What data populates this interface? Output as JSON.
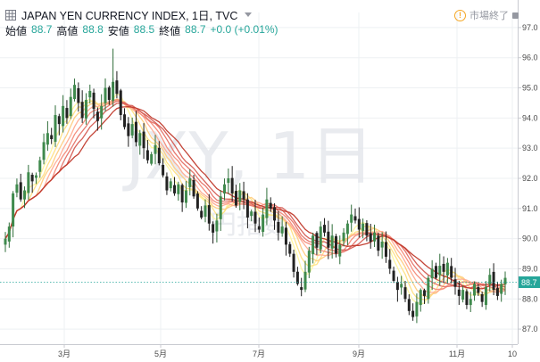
{
  "header": {
    "title": "JAPAN YEN CURRENCY INDEX, 1日, TVC",
    "ohlc": [
      {
        "label": "始値",
        "value": "88.7"
      },
      {
        "label": "高値",
        "value": "88.8"
      },
      {
        "label": "安値",
        "value": "88.5"
      },
      {
        "label": "終値",
        "value": "88.7"
      }
    ],
    "change": "+0.0 (+0.01%)"
  },
  "status": {
    "text": "市場終了"
  },
  "watermark": {
    "symbol": "JXY, 1日",
    "sub": "円指数"
  },
  "price_label": "88.7",
  "colors": {
    "up": "#26a69a",
    "down": "#ef5350",
    "candle_body": "#2e6b3c",
    "ribbon_fast": "#ffd54f",
    "ribbon_slow": "#c0392b",
    "price_tag": "#26a69a"
  },
  "chart_data": {
    "type": "candlestick",
    "title": "JAPAN YEN CURRENCY INDEX, 1日, TVC",
    "y_ticks": [
      "87.0",
      "88.0",
      "89.0",
      "90.0",
      "91.0",
      "92.0",
      "93.0",
      "94.0",
      "95.0",
      "96.0",
      "97.0"
    ],
    "ylim": [
      86.5,
      97.5
    ],
    "x_ticks": [
      "3月",
      "5月",
      "7月",
      "9月",
      "11月",
      "10"
    ],
    "last_price": 88.7,
    "overlay": "moving-average ribbon (fast to slow)",
    "grid": true,
    "closes": [
      90.0,
      90.4,
      91.5,
      91.8,
      91.3,
      91.6,
      92.2,
      91.9,
      92.1,
      92.6,
      93.2,
      93.5,
      93.3,
      94.1,
      93.8,
      94.4,
      94.0,
      94.7,
      95.1,
      94.5,
      94.0,
      94.6,
      94.9,
      94.3,
      93.9,
      94.4,
      95.0,
      94.6,
      95.2,
      94.8,
      94.1,
      93.7,
      93.4,
      93.8,
      93.2,
      93.5,
      93.0,
      92.6,
      92.8,
      93.1,
      92.5,
      92.1,
      91.6,
      91.9,
      91.5,
      91.8,
      91.2,
      91.6,
      92.0,
      91.4,
      91.0,
      90.7,
      91.1,
      90.5,
      90.2,
      90.6,
      91.4,
      91.8,
      92.0,
      91.5,
      91.1,
      91.6,
      91.3,
      90.7,
      90.9,
      90.5,
      90.3,
      90.8,
      91.3,
      91.0,
      90.6,
      90.2,
      90.4,
      89.8,
      89.5,
      88.9,
      88.5,
      88.3,
      88.9,
      89.6,
      90.1,
      89.7,
      90.4,
      90.2,
      89.7,
      90.1,
      89.5,
      89.8,
      90.2,
      90.5,
      90.8,
      90.6,
      90.3,
      90.5,
      90.1,
      89.9,
      90.2,
      89.6,
      89.9,
      89.4,
      89.0,
      88.6,
      88.3,
      88.5,
      88.0,
      87.6,
      87.4,
      87.9,
      88.3,
      88.1,
      88.7,
      89.0,
      88.7,
      89.1,
      88.9,
      89.2,
      88.7,
      88.4,
      88.1,
      88.3,
      87.8,
      88.0,
      88.5,
      88.2,
      87.9,
      88.4,
      88.8,
      88.3,
      88.1,
      88.5,
      88.7
    ]
  }
}
